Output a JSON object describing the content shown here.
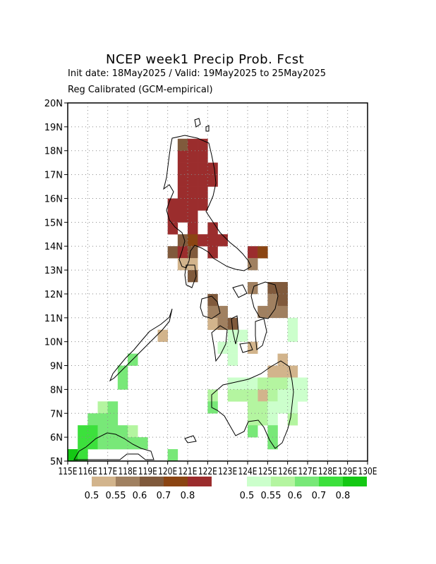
{
  "title": "NCEP week1 Precip Prob. Fcst",
  "subtitle_line1": "Init date: 18May2025 / Valid: 19May2025 to 25May2025",
  "subtitle_line2": "Reg Calibrated (GCM-empirical)",
  "axes": {
    "lon_min": 115,
    "lon_max": 130,
    "lat_min": 5,
    "lat_max": 20,
    "lat_ticks": [
      "5N",
      "6N",
      "7N",
      "8N",
      "9N",
      "10N",
      "11N",
      "12N",
      "13N",
      "14N",
      "15N",
      "16N",
      "17N",
      "18N",
      "19N",
      "20N"
    ],
    "lon_ticks": [
      "115E",
      "116E",
      "117E",
      "118E",
      "119E",
      "120E",
      "121E",
      "122E",
      "123E",
      "124E",
      "125E",
      "126E",
      "127E",
      "128E",
      "129E",
      "130E"
    ],
    "grid": "dotted"
  },
  "legend": {
    "below": {
      "colors": [
        "#d2b48c",
        "#a08060",
        "#805a3c",
        "#8b4513",
        "#9b2d2d"
      ],
      "labels": [
        "0.5",
        "0.55",
        "0.6",
        "0.7",
        "0.8"
      ]
    },
    "above": {
      "colors": [
        "#ccffcc",
        "#b4f5a0",
        "#78e878",
        "#3ce03c",
        "#14c814"
      ],
      "labels": [
        "0.5",
        "0.55",
        "0.6",
        "0.7",
        "0.8"
      ]
    }
  },
  "chart_data": {
    "type": "heatmap",
    "cell_size_deg": 0.5,
    "below_cells": [
      {
        "lon": 120.5,
        "lat": 18.0,
        "c": "#805a3c"
      },
      {
        "lon": 121.0,
        "lat": 18.0,
        "c": "#9b2d2d"
      },
      {
        "lon": 121.5,
        "lat": 18.0,
        "c": "#9b2d2d"
      },
      {
        "lon": 120.5,
        "lat": 17.5,
        "c": "#9b2d2d"
      },
      {
        "lon": 121.0,
        "lat": 17.5,
        "c": "#9b2d2d"
      },
      {
        "lon": 121.5,
        "lat": 17.5,
        "c": "#9b2d2d"
      },
      {
        "lon": 120.5,
        "lat": 17.0,
        "c": "#9b2d2d"
      },
      {
        "lon": 121.0,
        "lat": 17.0,
        "c": "#9b2d2d"
      },
      {
        "lon": 121.5,
        "lat": 17.0,
        "c": "#9b2d2d"
      },
      {
        "lon": 122.0,
        "lat": 17.0,
        "c": "#9b2d2d"
      },
      {
        "lon": 120.5,
        "lat": 16.5,
        "c": "#9b2d2d"
      },
      {
        "lon": 121.0,
        "lat": 16.5,
        "c": "#9b2d2d"
      },
      {
        "lon": 121.5,
        "lat": 16.5,
        "c": "#9b2d2d"
      },
      {
        "lon": 122.0,
        "lat": 16.5,
        "c": "#9b2d2d"
      },
      {
        "lon": 120.5,
        "lat": 16.0,
        "c": "#9b2d2d"
      },
      {
        "lon": 121.0,
        "lat": 16.0,
        "c": "#9b2d2d"
      },
      {
        "lon": 121.5,
        "lat": 16.0,
        "c": "#9b2d2d"
      },
      {
        "lon": 120.0,
        "lat": 15.5,
        "c": "#9b2d2d"
      },
      {
        "lon": 120.5,
        "lat": 15.5,
        "c": "#9b2d2d"
      },
      {
        "lon": 121.0,
        "lat": 15.5,
        "c": "#9b2d2d"
      },
      {
        "lon": 121.5,
        "lat": 15.5,
        "c": "#9b2d2d"
      },
      {
        "lon": 120.0,
        "lat": 15.0,
        "c": "#9b2d2d"
      },
      {
        "lon": 120.5,
        "lat": 15.0,
        "c": "#9b2d2d"
      },
      {
        "lon": 121.0,
        "lat": 15.0,
        "c": "#9b2d2d"
      },
      {
        "lon": 120.0,
        "lat": 14.5,
        "c": "#9b2d2d"
      },
      {
        "lon": 121.0,
        "lat": 14.5,
        "c": "#9b2d2d"
      },
      {
        "lon": 122.0,
        "lat": 14.5,
        "c": "#9b2d2d"
      },
      {
        "lon": 120.5,
        "lat": 14.0,
        "c": "#805a3c"
      },
      {
        "lon": 121.0,
        "lat": 14.0,
        "c": "#8b4513"
      },
      {
        "lon": 121.5,
        "lat": 14.0,
        "c": "#9b2d2d"
      },
      {
        "lon": 122.0,
        "lat": 14.0,
        "c": "#9b2d2d"
      },
      {
        "lon": 122.5,
        "lat": 14.0,
        "c": "#9b2d2d"
      },
      {
        "lon": 120.0,
        "lat": 13.5,
        "c": "#805a3c"
      },
      {
        "lon": 120.5,
        "lat": 13.5,
        "c": "#9b2d2d"
      },
      {
        "lon": 121.0,
        "lat": 13.5,
        "c": "#805a3c"
      },
      {
        "lon": 122.0,
        "lat": 13.5,
        "c": "#9b2d2d"
      },
      {
        "lon": 124.0,
        "lat": 13.5,
        "c": "#9b2d2d"
      },
      {
        "lon": 124.5,
        "lat": 13.5,
        "c": "#8b4513"
      },
      {
        "lon": 120.5,
        "lat": 13.0,
        "c": "#d2b48c"
      },
      {
        "lon": 121.0,
        "lat": 13.0,
        "c": "#d2b48c"
      },
      {
        "lon": 124.0,
        "lat": 13.0,
        "c": "#a08060"
      },
      {
        "lon": 121.0,
        "lat": 12.5,
        "c": "#805a3c"
      },
      {
        "lon": 124.0,
        "lat": 12.0,
        "c": "#a08060"
      },
      {
        "lon": 125.0,
        "lat": 12.0,
        "c": "#805a3c"
      },
      {
        "lon": 125.5,
        "lat": 12.0,
        "c": "#805a3c"
      },
      {
        "lon": 122.0,
        "lat": 11.5,
        "c": "#805a3c"
      },
      {
        "lon": 125.0,
        "lat": 11.5,
        "c": "#a08060"
      },
      {
        "lon": 125.5,
        "lat": 11.5,
        "c": "#805a3c"
      },
      {
        "lon": 122.0,
        "lat": 11.0,
        "c": "#a08060"
      },
      {
        "lon": 122.5,
        "lat": 11.0,
        "c": "#a08060"
      },
      {
        "lon": 124.5,
        "lat": 11.0,
        "c": "#a08060"
      },
      {
        "lon": 125.0,
        "lat": 11.0,
        "c": "#a08060"
      },
      {
        "lon": 125.5,
        "lat": 11.0,
        "c": "#a08060"
      },
      {
        "lon": 122.0,
        "lat": 10.5,
        "c": "#d2b48c"
      },
      {
        "lon": 122.5,
        "lat": 10.5,
        "c": "#a08060"
      },
      {
        "lon": 123.0,
        "lat": 10.5,
        "c": "#805a3c"
      },
      {
        "lon": 119.5,
        "lat": 10.0,
        "c": "#d2b48c"
      },
      {
        "lon": 124.0,
        "lat": 9.5,
        "c": "#d2b48c"
      },
      {
        "lon": 125.5,
        "lat": 9.0,
        "c": "#d2b48c"
      },
      {
        "lon": 125.0,
        "lat": 8.5,
        "c": "#d2b48c"
      },
      {
        "lon": 125.5,
        "lat": 8.5,
        "c": "#d2b48c"
      },
      {
        "lon": 126.0,
        "lat": 8.5,
        "c": "#d2b48c"
      },
      {
        "lon": 124.5,
        "lat": 7.5,
        "c": "#d2b48c"
      }
    ],
    "above_cells": [
      {
        "lon": 123.0,
        "lat": 10.0,
        "c": "#ccffcc"
      },
      {
        "lon": 123.5,
        "lat": 10.0,
        "c": "#ccffcc"
      },
      {
        "lon": 122.5,
        "lat": 9.5,
        "c": "#ccffcc"
      },
      {
        "lon": 123.0,
        "lat": 9.5,
        "c": "#ccffcc"
      },
      {
        "lon": 123.0,
        "lat": 9.0,
        "c": "#ccffcc"
      },
      {
        "lon": 126.0,
        "lat": 10.5,
        "c": "#ccffcc"
      },
      {
        "lon": 126.0,
        "lat": 10.0,
        "c": "#ccffcc"
      },
      {
        "lon": 118.0,
        "lat": 9.0,
        "c": "#78e878"
      },
      {
        "lon": 117.5,
        "lat": 8.5,
        "c": "#78e878"
      },
      {
        "lon": 117.5,
        "lat": 8.0,
        "c": "#78e878"
      },
      {
        "lon": 123.0,
        "lat": 8.0,
        "c": "#ccffcc"
      },
      {
        "lon": 123.5,
        "lat": 8.0,
        "c": "#ccffcc"
      },
      {
        "lon": 124.0,
        "lat": 8.0,
        "c": "#ccffcc"
      },
      {
        "lon": 124.5,
        "lat": 8.0,
        "c": "#b4f5a0"
      },
      {
        "lon": 125.0,
        "lat": 8.0,
        "c": "#b4f5a0"
      },
      {
        "lon": 125.5,
        "lat": 8.0,
        "c": "#b4f5a0"
      },
      {
        "lon": 126.0,
        "lat": 8.0,
        "c": "#ccffcc"
      },
      {
        "lon": 126.5,
        "lat": 8.0,
        "c": "#ccffcc"
      },
      {
        "lon": 122.0,
        "lat": 7.5,
        "c": "#b4f5a0"
      },
      {
        "lon": 123.0,
        "lat": 7.5,
        "c": "#b4f5a0"
      },
      {
        "lon": 123.5,
        "lat": 7.5,
        "c": "#b4f5a0"
      },
      {
        "lon": 124.0,
        "lat": 7.5,
        "c": "#b4f5a0"
      },
      {
        "lon": 125.0,
        "lat": 7.5,
        "c": "#b4f5a0"
      },
      {
        "lon": 125.5,
        "lat": 7.5,
        "c": "#ccffcc"
      },
      {
        "lon": 126.0,
        "lat": 7.5,
        "c": "#ccffcc"
      },
      {
        "lon": 126.5,
        "lat": 7.5,
        "c": "#ccffcc"
      },
      {
        "lon": 122.0,
        "lat": 7.0,
        "c": "#78e878"
      },
      {
        "lon": 124.0,
        "lat": 7.0,
        "c": "#b4f5a0"
      },
      {
        "lon": 124.5,
        "lat": 7.0,
        "c": "#b4f5a0"
      },
      {
        "lon": 125.0,
        "lat": 7.0,
        "c": "#ccffcc"
      },
      {
        "lon": 125.5,
        "lat": 7.0,
        "c": "#ccffcc"
      },
      {
        "lon": 126.0,
        "lat": 7.0,
        "c": "#ccffcc"
      },
      {
        "lon": 124.0,
        "lat": 6.5,
        "c": "#b4f5a0"
      },
      {
        "lon": 124.5,
        "lat": 6.5,
        "c": "#b4f5a0"
      },
      {
        "lon": 125.0,
        "lat": 6.5,
        "c": "#ccffcc"
      },
      {
        "lon": 126.0,
        "lat": 6.5,
        "c": "#b4f5a0"
      },
      {
        "lon": 124.0,
        "lat": 6.0,
        "c": "#78e878"
      },
      {
        "lon": 125.0,
        "lat": 6.0,
        "c": "#78e878"
      },
      {
        "lon": 125.0,
        "lat": 5.5,
        "c": "#78e878"
      },
      {
        "lon": 116.5,
        "lat": 7.0,
        "c": "#b4f5a0"
      },
      {
        "lon": 117.0,
        "lat": 7.0,
        "c": "#78e878"
      },
      {
        "lon": 116.0,
        "lat": 6.5,
        "c": "#78e878"
      },
      {
        "lon": 116.5,
        "lat": 6.5,
        "c": "#78e878"
      },
      {
        "lon": 117.0,
        "lat": 6.5,
        "c": "#78e878"
      },
      {
        "lon": 115.5,
        "lat": 6.0,
        "c": "#3ce03c"
      },
      {
        "lon": 116.0,
        "lat": 6.0,
        "c": "#3ce03c"
      },
      {
        "lon": 116.5,
        "lat": 6.0,
        "c": "#78e878"
      },
      {
        "lon": 117.0,
        "lat": 6.0,
        "c": "#78e878"
      },
      {
        "lon": 117.5,
        "lat": 6.0,
        "c": "#78e878"
      },
      {
        "lon": 118.0,
        "lat": 6.0,
        "c": "#b4f5a0"
      },
      {
        "lon": 115.5,
        "lat": 5.5,
        "c": "#3ce03c"
      },
      {
        "lon": 116.0,
        "lat": 5.5,
        "c": "#3ce03c"
      },
      {
        "lon": 116.5,
        "lat": 5.5,
        "c": "#78e878"
      },
      {
        "lon": 117.0,
        "lat": 5.5,
        "c": "#78e878"
      },
      {
        "lon": 117.5,
        "lat": 5.5,
        "c": "#78e878"
      },
      {
        "lon": 118.0,
        "lat": 5.5,
        "c": "#78e878"
      },
      {
        "lon": 118.5,
        "lat": 5.5,
        "c": "#78e878"
      },
      {
        "lon": 115.0,
        "lat": 5.0,
        "c": "#14c814"
      },
      {
        "lon": 115.5,
        "lat": 5.0,
        "c": "#3ce03c"
      },
      {
        "lon": 120.0,
        "lat": 5.0,
        "c": "#78e878"
      }
    ]
  }
}
